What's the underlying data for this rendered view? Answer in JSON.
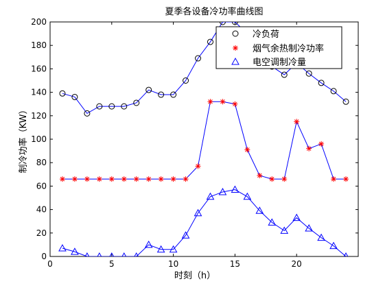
{
  "chart_data": {
    "type": "line",
    "title": "夏季各设备冷功率曲线图",
    "xlabel": "时刻（h）",
    "ylabel": "制冷功率（KW）",
    "xlim": [
      0,
      25
    ],
    "ylim": [
      0,
      200
    ],
    "xticks": [
      0,
      5,
      10,
      15,
      20
    ],
    "yticks": [
      0,
      20,
      40,
      60,
      80,
      100,
      120,
      140,
      160,
      180,
      200
    ],
    "grid": false,
    "legend_position": "top-right",
    "line_color": "#0000ff",
    "series": [
      {
        "name": "冷负荷",
        "marker": "circle",
        "marker_color": "#000000",
        "x": [
          1,
          2,
          3,
          4,
          5,
          6,
          7,
          8,
          9,
          10,
          11,
          12,
          13,
          14,
          15,
          16,
          17,
          18,
          19,
          20,
          21,
          22,
          23,
          24
        ],
        "y": [
          139,
          136,
          122,
          128,
          128,
          128,
          131,
          142,
          138,
          138,
          150,
          169,
          183,
          200,
          200,
          190,
          182,
          162,
          155,
          165,
          156,
          148,
          141,
          132
        ]
      },
      {
        "name": "烟气余热制冷功率",
        "marker": "star",
        "marker_color": "#ff0000",
        "x": [
          1,
          2,
          3,
          4,
          5,
          6,
          7,
          8,
          9,
          10,
          11,
          12,
          13,
          14,
          15,
          16,
          17,
          18,
          19,
          20,
          21,
          22,
          23,
          24
        ],
        "y": [
          66,
          66,
          66,
          66,
          66,
          66,
          66,
          66,
          66,
          66,
          66,
          77,
          132,
          132,
          130,
          91,
          69,
          66,
          66,
          115,
          92,
          96,
          66,
          66
        ]
      },
      {
        "name": "电空调制冷量",
        "marker": "triangle",
        "marker_color": "#0000ff",
        "x": [
          1,
          2,
          3,
          4,
          5,
          6,
          7,
          8,
          9,
          10,
          11,
          12,
          13,
          14,
          15,
          16,
          17,
          18,
          19,
          20,
          21,
          22,
          23,
          24
        ],
        "y": [
          7,
          4,
          0,
          0,
          0,
          0,
          0,
          10,
          6,
          6,
          18,
          37,
          51,
          55,
          57,
          51,
          39,
          29,
          22,
          33,
          24,
          16,
          9,
          0
        ]
      }
    ]
  }
}
